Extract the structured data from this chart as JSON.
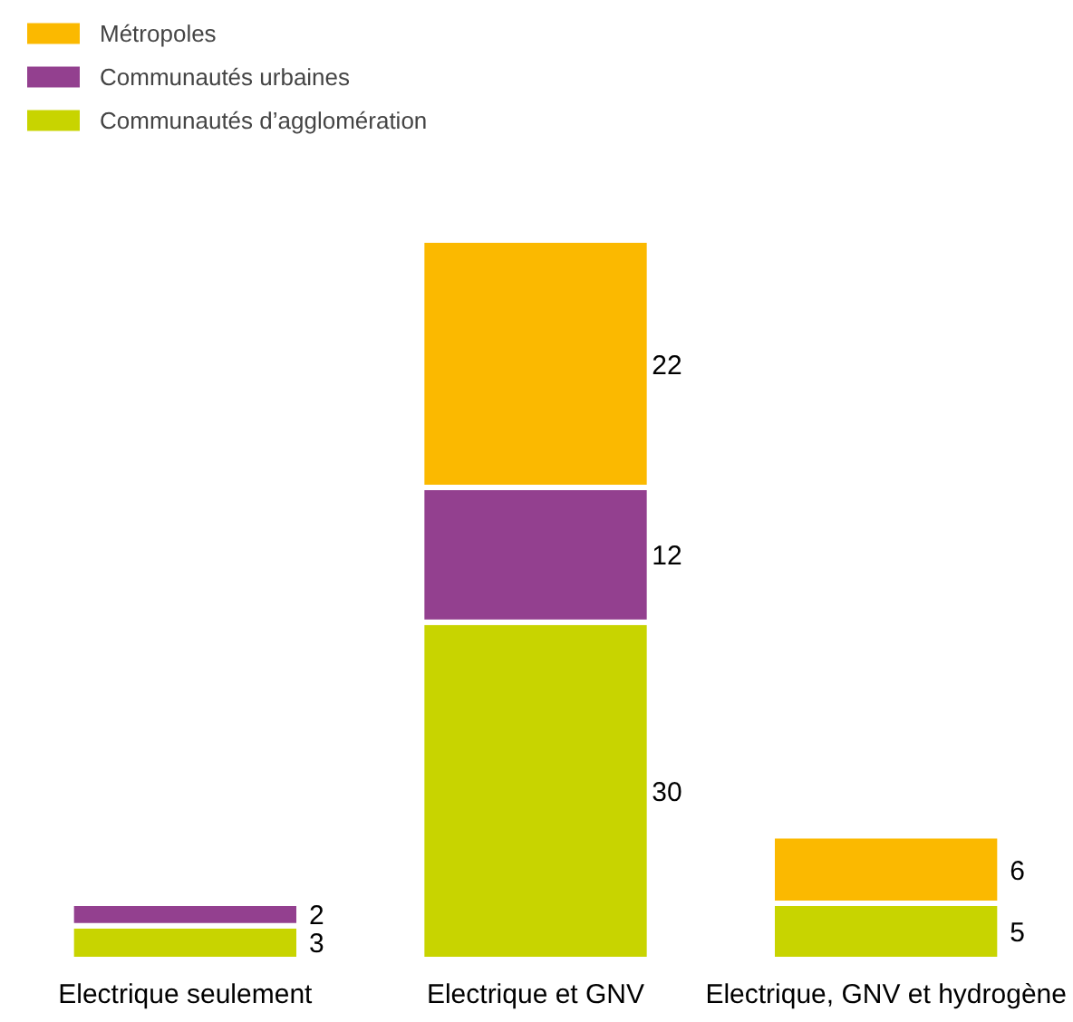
{
  "chart_data": {
    "type": "bar",
    "stacked": true,
    "data_labels": true,
    "legend": "top left",
    "categories": [
      "Electrique seulement",
      "Electrique et GNV",
      "Electrique, GNV et hydrogène"
    ],
    "series": [
      {
        "name": "Communautés d’agglomération",
        "color": "#c8d400",
        "values": [
          3,
          30,
          5
        ]
      },
      {
        "name": "Communautés urbaines",
        "color": "#93408f",
        "values": [
          2,
          12,
          null
        ]
      },
      {
        "name": "Métropoles",
        "color": "#fbb900",
        "values": [
          null,
          22,
          6
        ]
      }
    ]
  }
}
